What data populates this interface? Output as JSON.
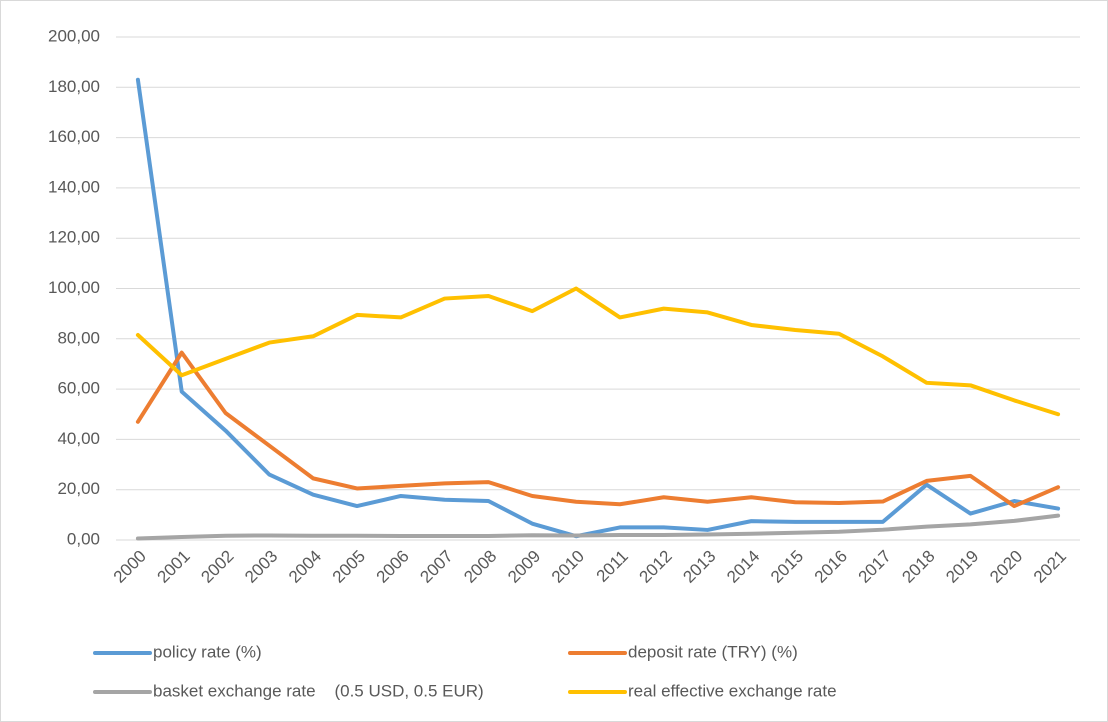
{
  "chart_data": {
    "type": "line",
    "categories": [
      "2000",
      "2001",
      "2002",
      "2003",
      "2004",
      "2005",
      "2006",
      "2007",
      "2008",
      "2009",
      "2010",
      "2011",
      "2012",
      "2013",
      "2014",
      "2015",
      "2016",
      "2017",
      "2018",
      "2019",
      "2020",
      "2021"
    ],
    "series": [
      {
        "name": "policy rate (%)",
        "color": "#5b9bd5",
        "values": [
          183,
          59,
          43.5,
          26,
          18,
          13.5,
          17.5,
          16,
          15.5,
          6.5,
          1.5,
          5,
          5,
          4,
          7.5,
          7.2,
          7.2,
          7.2,
          22,
          10.5,
          15.5,
          12.5
        ]
      },
      {
        "name": "deposit rate (TRY) (%)",
        "color": "#ed7d31",
        "values": [
          47,
          74.5,
          50.5,
          37.5,
          24.5,
          20.5,
          21.5,
          22.5,
          23,
          17.5,
          15.2,
          14.2,
          17,
          15.2,
          17,
          15,
          14.7,
          15.3,
          23.5,
          25.5,
          13.5,
          21
        ]
      },
      {
        "name": "basket exchange rate    (0.5 USD, 0.5 EUR)",
        "color": "#a5a5a5",
        "values": [
          0.6,
          1.2,
          1.7,
          1.8,
          1.7,
          1.7,
          1.6,
          1.6,
          1.6,
          1.9,
          1.8,
          2.0,
          2.0,
          2.2,
          2.5,
          2.9,
          3.3,
          4.1,
          5.3,
          6.2,
          7.6,
          9.7
        ]
      },
      {
        "name": "real effective exchange rate",
        "color": "#ffc000",
        "values": [
          81.5,
          65.5,
          72,
          78.5,
          81,
          89.5,
          88.5,
          96,
          97,
          91,
          100,
          88.5,
          92,
          90.5,
          85.5,
          83.5,
          82,
          73,
          62.5,
          61.5,
          55.5,
          50
        ]
      }
    ],
    "ylim": [
      0,
      200
    ],
    "yticks": [
      {
        "value": 0,
        "label": "0,00"
      },
      {
        "value": 20,
        "label": "20,00"
      },
      {
        "value": 40,
        "label": "40,00"
      },
      {
        "value": 60,
        "label": "60,00"
      },
      {
        "value": 80,
        "label": "80,00"
      },
      {
        "value": 100,
        "label": "100,00"
      },
      {
        "value": 120,
        "label": "120,00"
      },
      {
        "value": 140,
        "label": "140,00"
      },
      {
        "value": 160,
        "label": "160,00"
      },
      {
        "value": 180,
        "label": "180,00"
      },
      {
        "value": 200,
        "label": "200,00"
      }
    ],
    "grid": true,
    "legend": "bottom"
  }
}
